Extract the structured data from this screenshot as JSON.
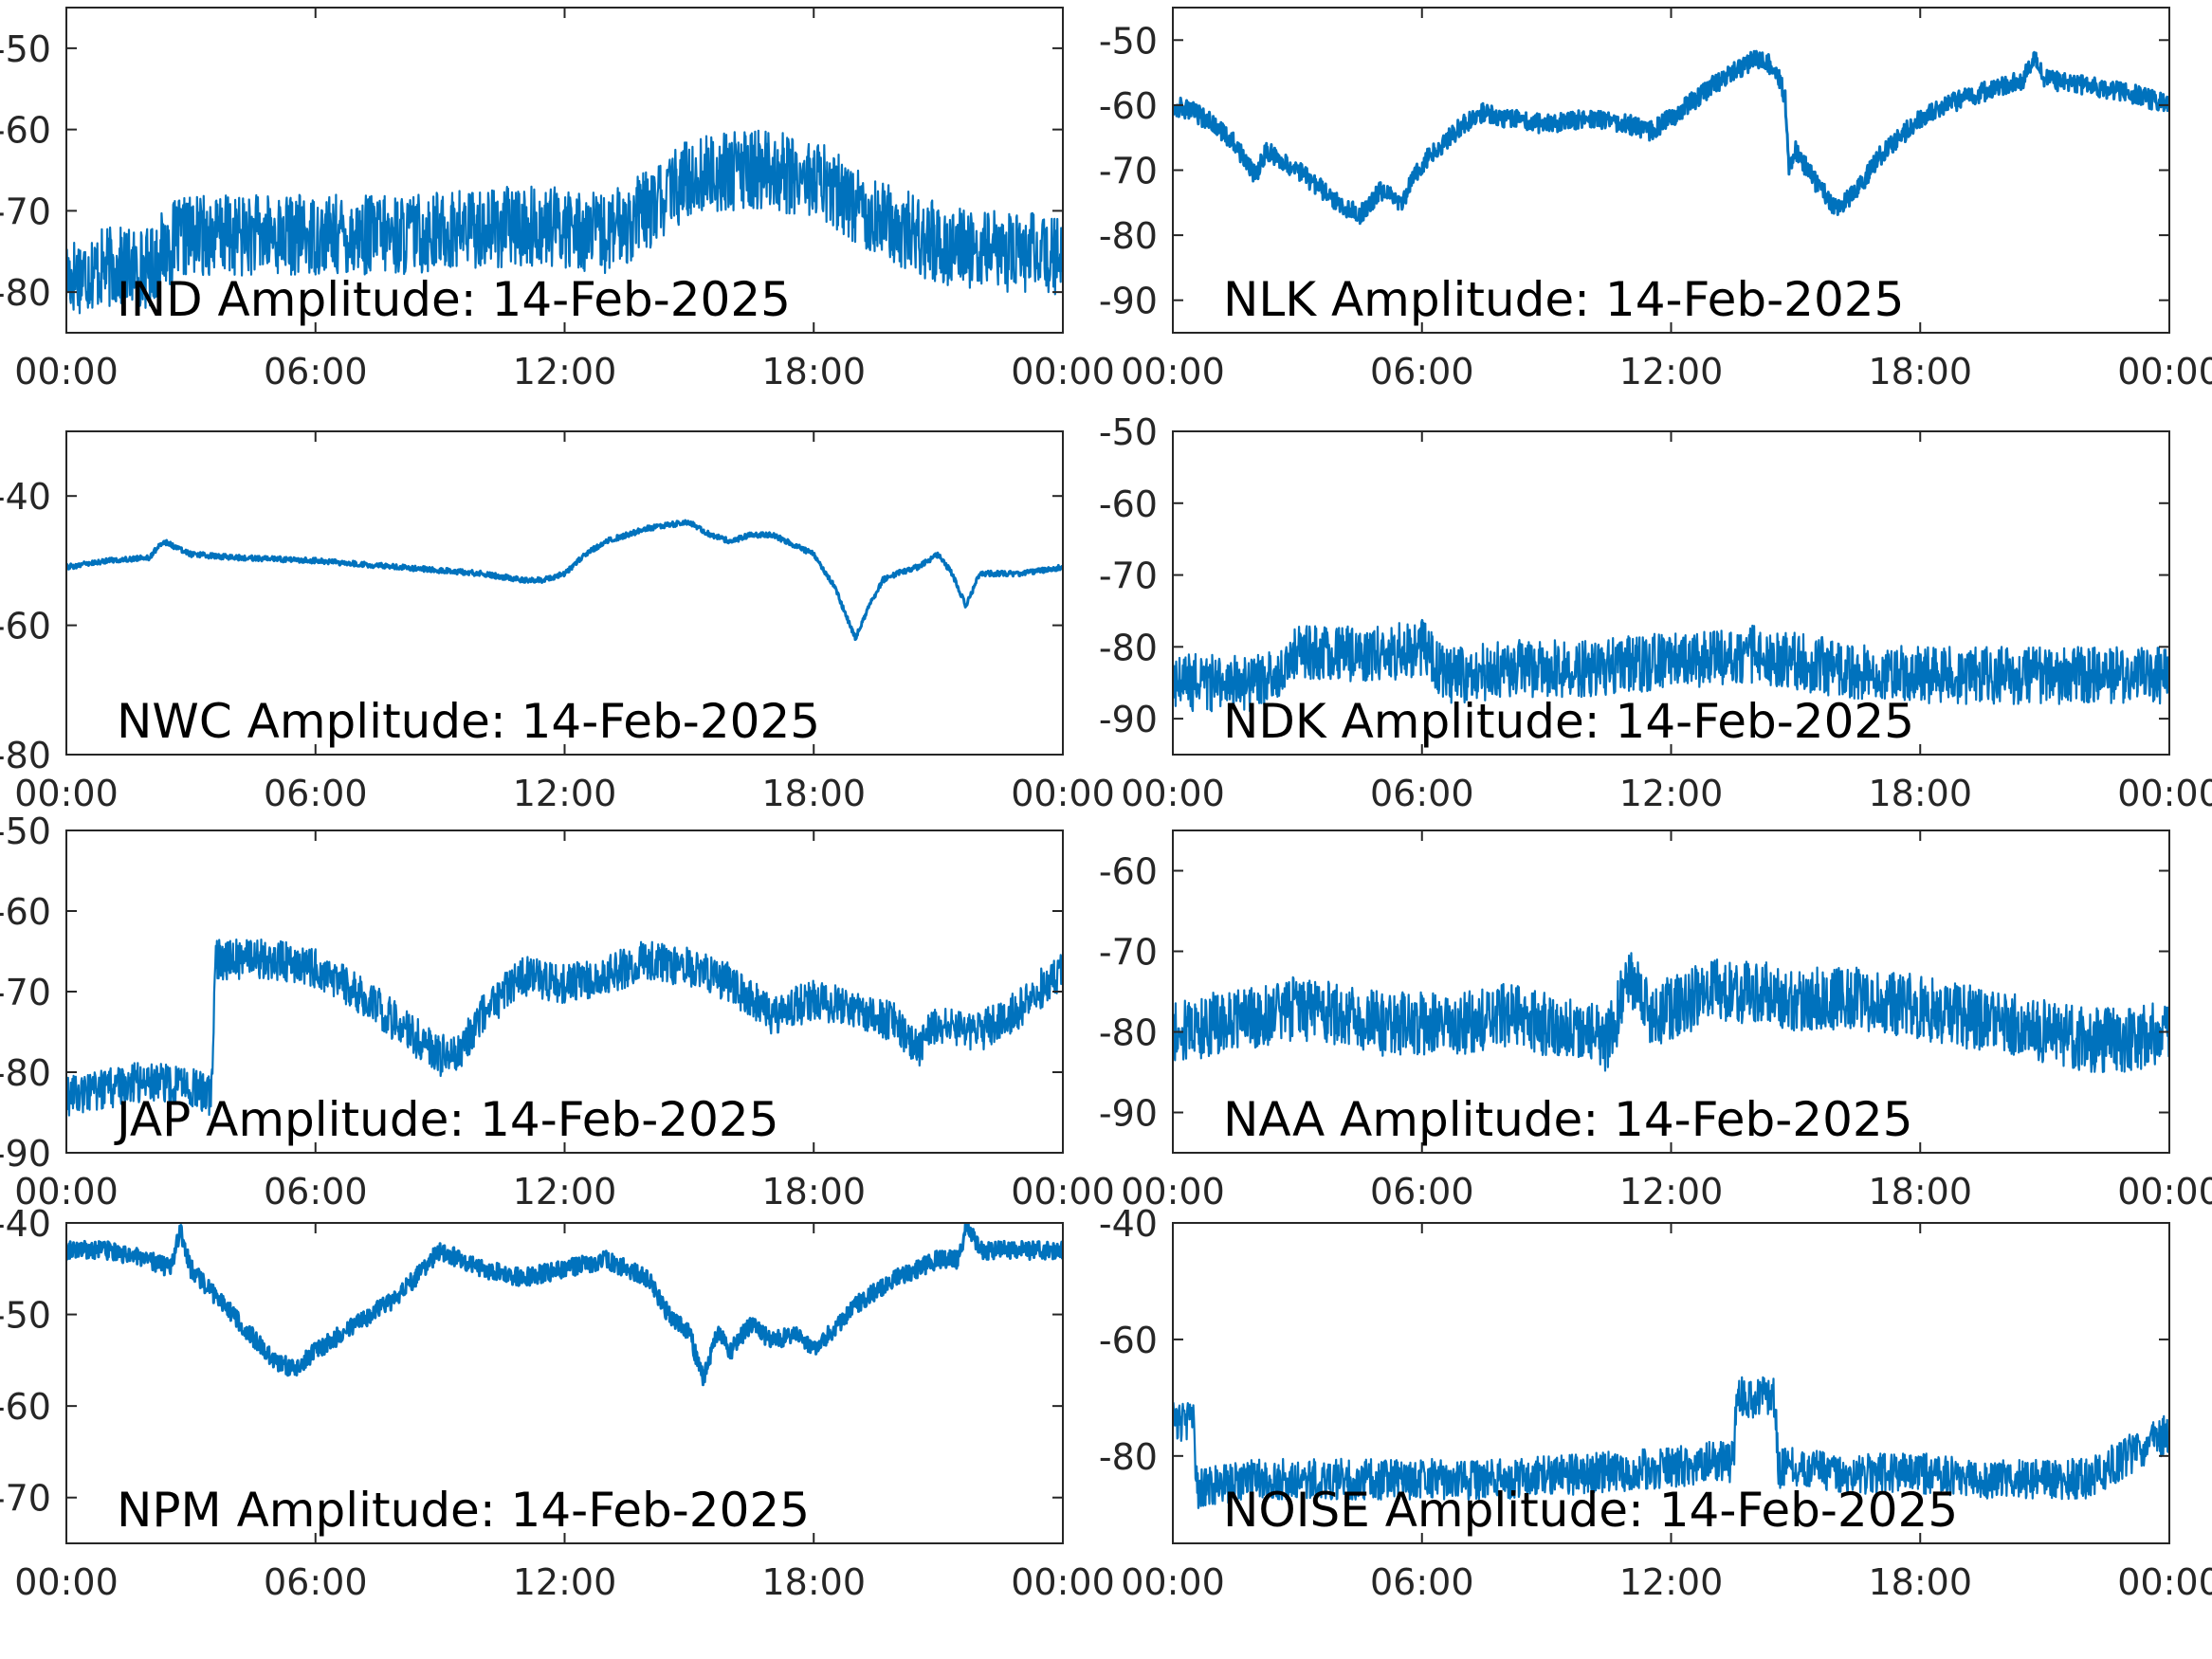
{
  "colors": {
    "trace": "#0072BD",
    "axis": "#262626",
    "background": "#ffffff"
  },
  "chart_data": [
    {
      "type": "line",
      "title": "IND Amplitude: 14-Feb-2025",
      "x_ticks": [
        "00:00",
        "06:00",
        "12:00",
        "18:00",
        "00:00"
      ],
      "y_ticks": [
        "-50",
        "-60",
        "-70",
        "-80"
      ],
      "y_tick_values": [
        -50,
        -60,
        -70,
        -80
      ],
      "ylim": [
        -85,
        -45
      ],
      "grid": false,
      "series": [
        {
          "noise": 5,
          "x": [
            "00:00",
            "01:00",
            "02:00",
            "02:30",
            "03:00",
            "04:00",
            "06:00",
            "08:00",
            "10:00",
            "12:00",
            "13:00",
            "14:00",
            "15:00",
            "16:00",
            "17:00",
            "18:00",
            "19:00",
            "20:00",
            "21:00",
            "22:00",
            "23:00",
            "24:00"
          ],
          "y": [
            -78,
            -77,
            -77,
            -74,
            -73,
            -73,
            -73,
            -73,
            -72,
            -72,
            -73,
            -70,
            -66,
            -65,
            -65,
            -66,
            -69,
            -72,
            -74,
            -75,
            -75,
            -76
          ]
        }
      ]
    },
    {
      "type": "line",
      "title": "NLK Amplitude: 14-Feb-2025",
      "x_ticks": [
        "00:00",
        "06:00",
        "12:00",
        "18:00",
        "00:00"
      ],
      "y_ticks": [
        "-50",
        "-60",
        "-70",
        "-80",
        "-90"
      ],
      "y_tick_values": [
        -50,
        -60,
        -70,
        -80,
        -90
      ],
      "ylim": [
        -95,
        -45
      ],
      "grid": false,
      "series": [
        {
          "noise": 1.5,
          "x": [
            "00:00",
            "00:30",
            "01:00",
            "01:30",
            "02:00",
            "02:15",
            "03:00",
            "04:00",
            "04:30",
            "05:00",
            "05:30",
            "06:00",
            "06:30",
            "07:00",
            "07:30",
            "08:00",
            "09:00",
            "10:00",
            "11:00",
            "11:30",
            "12:00",
            "13:00",
            "14:00",
            "14:30",
            "14:45",
            "14:50",
            "15:00",
            "15:30",
            "16:00",
            "16:30",
            "17:00",
            "18:00",
            "19:00",
            "20:00",
            "20:30",
            "20:45",
            "21:00",
            "22:00",
            "23:00",
            "24:00"
          ],
          "y": [
            -60,
            -61,
            -63,
            -66,
            -71,
            -67,
            -70,
            -75,
            -77,
            -73,
            -75,
            -69,
            -66,
            -63,
            -61,
            -62,
            -63,
            -62,
            -63,
            -64,
            -62,
            -57,
            -53,
            -54,
            -59,
            -70,
            -67,
            -72,
            -76,
            -73,
            -68,
            -62,
            -59,
            -57,
            -56,
            -52,
            -56,
            -57,
            -58,
            -60
          ]
        }
      ]
    },
    {
      "type": "line",
      "title": "NWC Amplitude: 14-Feb-2025",
      "x_ticks": [
        "00:00",
        "06:00",
        "12:00",
        "18:00",
        "00:00"
      ],
      "y_ticks": [
        "-40",
        "-60",
        "-80"
      ],
      "y_tick_values": [
        -40,
        -60,
        -80
      ],
      "ylim": [
        -80,
        -30
      ],
      "grid": false,
      "series": [
        {
          "noise": 0.4,
          "x": [
            "00:00",
            "01:00",
            "02:00",
            "02:20",
            "02:40",
            "03:00",
            "04:00",
            "06:00",
            "08:00",
            "10:00",
            "11:00",
            "11:30",
            "12:00",
            "12:30",
            "13:00",
            "14:00",
            "15:00",
            "15:30",
            "16:00",
            "16:30",
            "17:00",
            "18:00",
            "18:30",
            "19:00",
            "19:20",
            "19:40",
            "20:00",
            "20:30",
            "21:00",
            "21:20",
            "21:40",
            "22:00",
            "23:00",
            "24:00"
          ],
          "y": [
            -51,
            -50,
            -49.5,
            -47,
            -48,
            -49,
            -49.5,
            -50,
            -51,
            -52,
            -53,
            -53,
            -52,
            -49,
            -47,
            -45,
            -44,
            -46,
            -47,
            -46,
            -46,
            -49,
            -54,
            -62,
            -57,
            -53,
            -52,
            -51,
            -49,
            -52,
            -57,
            -52,
            -52,
            -51
          ]
        }
      ]
    },
    {
      "type": "line",
      "title": "NDK Amplitude: 14-Feb-2025",
      "x_ticks": [
        "00:00",
        "06:00",
        "12:00",
        "18:00",
        "00:00"
      ],
      "y_ticks": [
        "-50",
        "-60",
        "-70",
        "-80",
        "-90"
      ],
      "y_tick_values": [
        -50,
        -60,
        -70,
        -80,
        -90
      ],
      "ylim": [
        -95,
        -50
      ],
      "grid": false,
      "series": [
        {
          "noise": 4,
          "x": [
            "00:00",
            "01:00",
            "02:00",
            "02:30",
            "03:00",
            "04:00",
            "05:00",
            "06:00",
            "06:30",
            "07:00",
            "08:00",
            "10:00",
            "12:00",
            "14:00",
            "16:00",
            "18:00",
            "20:00",
            "22:00",
            "24:00"
          ],
          "y": [
            -85,
            -85,
            -85,
            -84,
            -81,
            -81,
            -81,
            -80,
            -84,
            -84,
            -83,
            -83,
            -82,
            -81,
            -83,
            -84,
            -84,
            -84,
            -84
          ]
        }
      ]
    },
    {
      "type": "line",
      "title": "JAP Amplitude: 14-Feb-2025",
      "x_ticks": [
        "00:00",
        "06:00",
        "12:00",
        "18:00",
        "00:00"
      ],
      "y_ticks": [
        "-50",
        "-60",
        "-70",
        "-80",
        "-90"
      ],
      "y_tick_values": [
        -50,
        -60,
        -70,
        -80,
        -90
      ],
      "ylim": [
        -90,
        -50
      ],
      "grid": false,
      "series": [
        {
          "noise": 2.5,
          "x": [
            "00:00",
            "01:00",
            "02:00",
            "03:00",
            "03:30",
            "03:35",
            "04:00",
            "05:00",
            "06:00",
            "07:00",
            "08:00",
            "09:00",
            "09:30",
            "10:00",
            "11:00",
            "12:00",
            "13:00",
            "14:00",
            "15:00",
            "16:00",
            "17:00",
            "18:00",
            "19:00",
            "20:00",
            "20:30",
            "21:00",
            "21:30",
            "22:00",
            "23:00",
            "24:00"
          ],
          "y": [
            -83,
            -82,
            -81,
            -82,
            -83,
            -66,
            -66,
            -66,
            -67,
            -70,
            -74,
            -78,
            -77,
            -73,
            -68,
            -69,
            -68,
            -66,
            -67,
            -69,
            -73,
            -71,
            -72,
            -74,
            -77,
            -74,
            -75,
            -75,
            -72,
            -67
          ]
        }
      ]
    },
    {
      "type": "line",
      "title": "NAA Amplitude: 14-Feb-2025",
      "x_ticks": [
        "00:00",
        "06:00",
        "12:00",
        "18:00",
        "00:00"
      ],
      "y_ticks": [
        "-60",
        "-70",
        "-80",
        "-90"
      ],
      "y_tick_values": [
        -60,
        -70,
        -80,
        -90
      ],
      "ylim": [
        -95,
        -55
      ],
      "grid": false,
      "series": [
        {
          "noise": 4,
          "x": [
            "00:00",
            "01:00",
            "02:00",
            "03:00",
            "04:00",
            "05:00",
            "06:00",
            "07:00",
            "08:00",
            "09:00",
            "10:00",
            "10:30",
            "11:00",
            "11:30",
            "12:00",
            "13:00",
            "14:00",
            "15:00",
            "16:00",
            "17:00",
            "18:00",
            "19:00",
            "20:00",
            "21:00",
            "22:00",
            "23:00",
            "24:00"
          ],
          "y": [
            -80,
            -79,
            -78,
            -77,
            -78,
            -79,
            -79,
            -79,
            -78,
            -79,
            -80,
            -81,
            -73,
            -78,
            -77,
            -75,
            -75,
            -76,
            -76,
            -76,
            -77,
            -78,
            -79,
            -80,
            -81,
            -81,
            -80
          ]
        }
      ]
    },
    {
      "type": "line",
      "title": "NPM Amplitude: 14-Feb-2025",
      "x_ticks": [
        "00:00",
        "06:00",
        "12:00",
        "18:00",
        "00:00"
      ],
      "y_ticks": [
        "-40",
        "-50",
        "-60",
        "-70"
      ],
      "y_tick_values": [
        -40,
        -50,
        -60,
        -70
      ],
      "ylim": [
        -75,
        -40
      ],
      "grid": false,
      "series": [
        {
          "noise": 1,
          "x": [
            "00:00",
            "01:00",
            "02:00",
            "02:30",
            "02:45",
            "03:00",
            "04:00",
            "05:00",
            "05:30",
            "06:00",
            "07:00",
            "08:00",
            "09:00",
            "10:00",
            "11:00",
            "12:00",
            "13:00",
            "14:00",
            "14:30",
            "15:00",
            "15:20",
            "15:40",
            "16:00",
            "16:30",
            "17:00",
            "17:30",
            "18:00",
            "19:00",
            "20:00",
            "21:00",
            "21:30",
            "21:40",
            "22:00",
            "23:00",
            "24:00"
          ],
          "y": [
            -43,
            -43,
            -44,
            -45,
            -41,
            -45,
            -50,
            -55,
            -56,
            -54,
            -51,
            -48,
            -43,
            -45,
            -46,
            -45,
            -44,
            -46,
            -50,
            -52,
            -57,
            -52,
            -54,
            -51,
            -53,
            -52,
            -54,
            -49,
            -46,
            -44,
            -44,
            -40,
            -43,
            -43,
            -43
          ]
        }
      ]
    },
    {
      "type": "line",
      "title": "NOISE Amplitude: 14-Feb-2025",
      "x_ticks": [
        "00:00",
        "06:00",
        "12:00",
        "18:00",
        "00:00"
      ],
      "y_ticks": [
        "-40",
        "-60",
        "-80"
      ],
      "y_tick_values": [
        -40,
        -60,
        -80
      ],
      "ylim": [
        -95,
        -40
      ],
      "grid": false,
      "series": [
        {
          "noise": 3.5,
          "x": [
            "00:00",
            "00:30",
            "00:35",
            "01:00",
            "02:00",
            "04:00",
            "06:00",
            "08:00",
            "10:00",
            "12:00",
            "13:00",
            "13:30",
            "13:35",
            "14:00",
            "14:30",
            "14:35",
            "15:00",
            "16:00",
            "18:00",
            "20:00",
            "22:00",
            "23:30",
            "24:00"
          ],
          "y": [
            -74,
            -74,
            -86,
            -85,
            -84,
            -84,
            -84,
            -84,
            -83,
            -82,
            -81,
            -81,
            -70,
            -70,
            -70,
            -82,
            -82,
            -83,
            -83,
            -84,
            -84,
            -78,
            -76
          ]
        }
      ]
    }
  ]
}
